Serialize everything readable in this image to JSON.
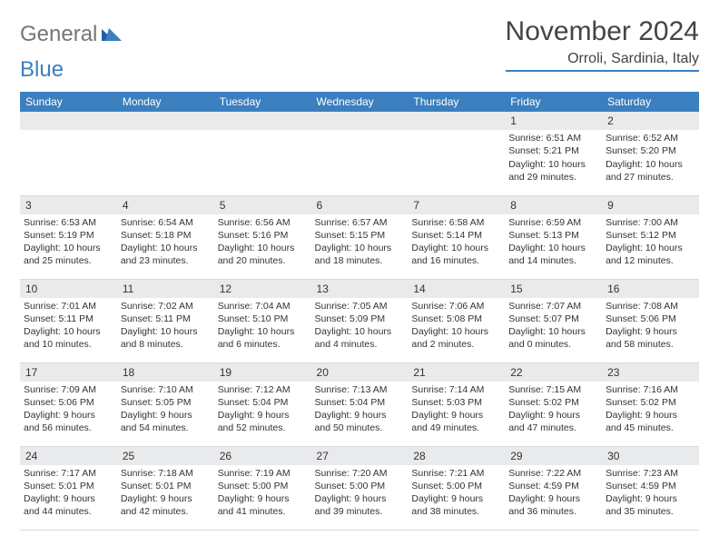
{
  "brand": {
    "general": "General",
    "blue": "Blue"
  },
  "title": "November 2024",
  "location": "Orroli, Sardinia, Italy",
  "colors": {
    "header_bg": "#3b7fbf",
    "header_text": "#ffffff",
    "daynum_bg": "#e8eaec",
    "page_bg": "#ffffff",
    "text": "#333333",
    "rule": "#d9d9d9"
  },
  "daysOfWeek": [
    "Sunday",
    "Monday",
    "Tuesday",
    "Wednesday",
    "Thursday",
    "Friday",
    "Saturday"
  ],
  "labels": {
    "sunrise_prefix": "Sunrise: ",
    "sunset_prefix": "Sunset: ",
    "daylight_prefix": "Daylight: "
  },
  "weeks": [
    [
      null,
      null,
      null,
      null,
      null,
      {
        "n": "1",
        "sunrise": "6:51 AM",
        "sunset": "5:21 PM",
        "daylight": "10 hours and 29 minutes."
      },
      {
        "n": "2",
        "sunrise": "6:52 AM",
        "sunset": "5:20 PM",
        "daylight": "10 hours and 27 minutes."
      }
    ],
    [
      {
        "n": "3",
        "sunrise": "6:53 AM",
        "sunset": "5:19 PM",
        "daylight": "10 hours and 25 minutes."
      },
      {
        "n": "4",
        "sunrise": "6:54 AM",
        "sunset": "5:18 PM",
        "daylight": "10 hours and 23 minutes."
      },
      {
        "n": "5",
        "sunrise": "6:56 AM",
        "sunset": "5:16 PM",
        "daylight": "10 hours and 20 minutes."
      },
      {
        "n": "6",
        "sunrise": "6:57 AM",
        "sunset": "5:15 PM",
        "daylight": "10 hours and 18 minutes."
      },
      {
        "n": "7",
        "sunrise": "6:58 AM",
        "sunset": "5:14 PM",
        "daylight": "10 hours and 16 minutes."
      },
      {
        "n": "8",
        "sunrise": "6:59 AM",
        "sunset": "5:13 PM",
        "daylight": "10 hours and 14 minutes."
      },
      {
        "n": "9",
        "sunrise": "7:00 AM",
        "sunset": "5:12 PM",
        "daylight": "10 hours and 12 minutes."
      }
    ],
    [
      {
        "n": "10",
        "sunrise": "7:01 AM",
        "sunset": "5:11 PM",
        "daylight": "10 hours and 10 minutes."
      },
      {
        "n": "11",
        "sunrise": "7:02 AM",
        "sunset": "5:11 PM",
        "daylight": "10 hours and 8 minutes."
      },
      {
        "n": "12",
        "sunrise": "7:04 AM",
        "sunset": "5:10 PM",
        "daylight": "10 hours and 6 minutes."
      },
      {
        "n": "13",
        "sunrise": "7:05 AM",
        "sunset": "5:09 PM",
        "daylight": "10 hours and 4 minutes."
      },
      {
        "n": "14",
        "sunrise": "7:06 AM",
        "sunset": "5:08 PM",
        "daylight": "10 hours and 2 minutes."
      },
      {
        "n": "15",
        "sunrise": "7:07 AM",
        "sunset": "5:07 PM",
        "daylight": "10 hours and 0 minutes."
      },
      {
        "n": "16",
        "sunrise": "7:08 AM",
        "sunset": "5:06 PM",
        "daylight": "9 hours and 58 minutes."
      }
    ],
    [
      {
        "n": "17",
        "sunrise": "7:09 AM",
        "sunset": "5:06 PM",
        "daylight": "9 hours and 56 minutes."
      },
      {
        "n": "18",
        "sunrise": "7:10 AM",
        "sunset": "5:05 PM",
        "daylight": "9 hours and 54 minutes."
      },
      {
        "n": "19",
        "sunrise": "7:12 AM",
        "sunset": "5:04 PM",
        "daylight": "9 hours and 52 minutes."
      },
      {
        "n": "20",
        "sunrise": "7:13 AM",
        "sunset": "5:04 PM",
        "daylight": "9 hours and 50 minutes."
      },
      {
        "n": "21",
        "sunrise": "7:14 AM",
        "sunset": "5:03 PM",
        "daylight": "9 hours and 49 minutes."
      },
      {
        "n": "22",
        "sunrise": "7:15 AM",
        "sunset": "5:02 PM",
        "daylight": "9 hours and 47 minutes."
      },
      {
        "n": "23",
        "sunrise": "7:16 AM",
        "sunset": "5:02 PM",
        "daylight": "9 hours and 45 minutes."
      }
    ],
    [
      {
        "n": "24",
        "sunrise": "7:17 AM",
        "sunset": "5:01 PM",
        "daylight": "9 hours and 44 minutes."
      },
      {
        "n": "25",
        "sunrise": "7:18 AM",
        "sunset": "5:01 PM",
        "daylight": "9 hours and 42 minutes."
      },
      {
        "n": "26",
        "sunrise": "7:19 AM",
        "sunset": "5:00 PM",
        "daylight": "9 hours and 41 minutes."
      },
      {
        "n": "27",
        "sunrise": "7:20 AM",
        "sunset": "5:00 PM",
        "daylight": "9 hours and 39 minutes."
      },
      {
        "n": "28",
        "sunrise": "7:21 AM",
        "sunset": "5:00 PM",
        "daylight": "9 hours and 38 minutes."
      },
      {
        "n": "29",
        "sunrise": "7:22 AM",
        "sunset": "4:59 PM",
        "daylight": "9 hours and 36 minutes."
      },
      {
        "n": "30",
        "sunrise": "7:23 AM",
        "sunset": "4:59 PM",
        "daylight": "9 hours and 35 minutes."
      }
    ]
  ]
}
